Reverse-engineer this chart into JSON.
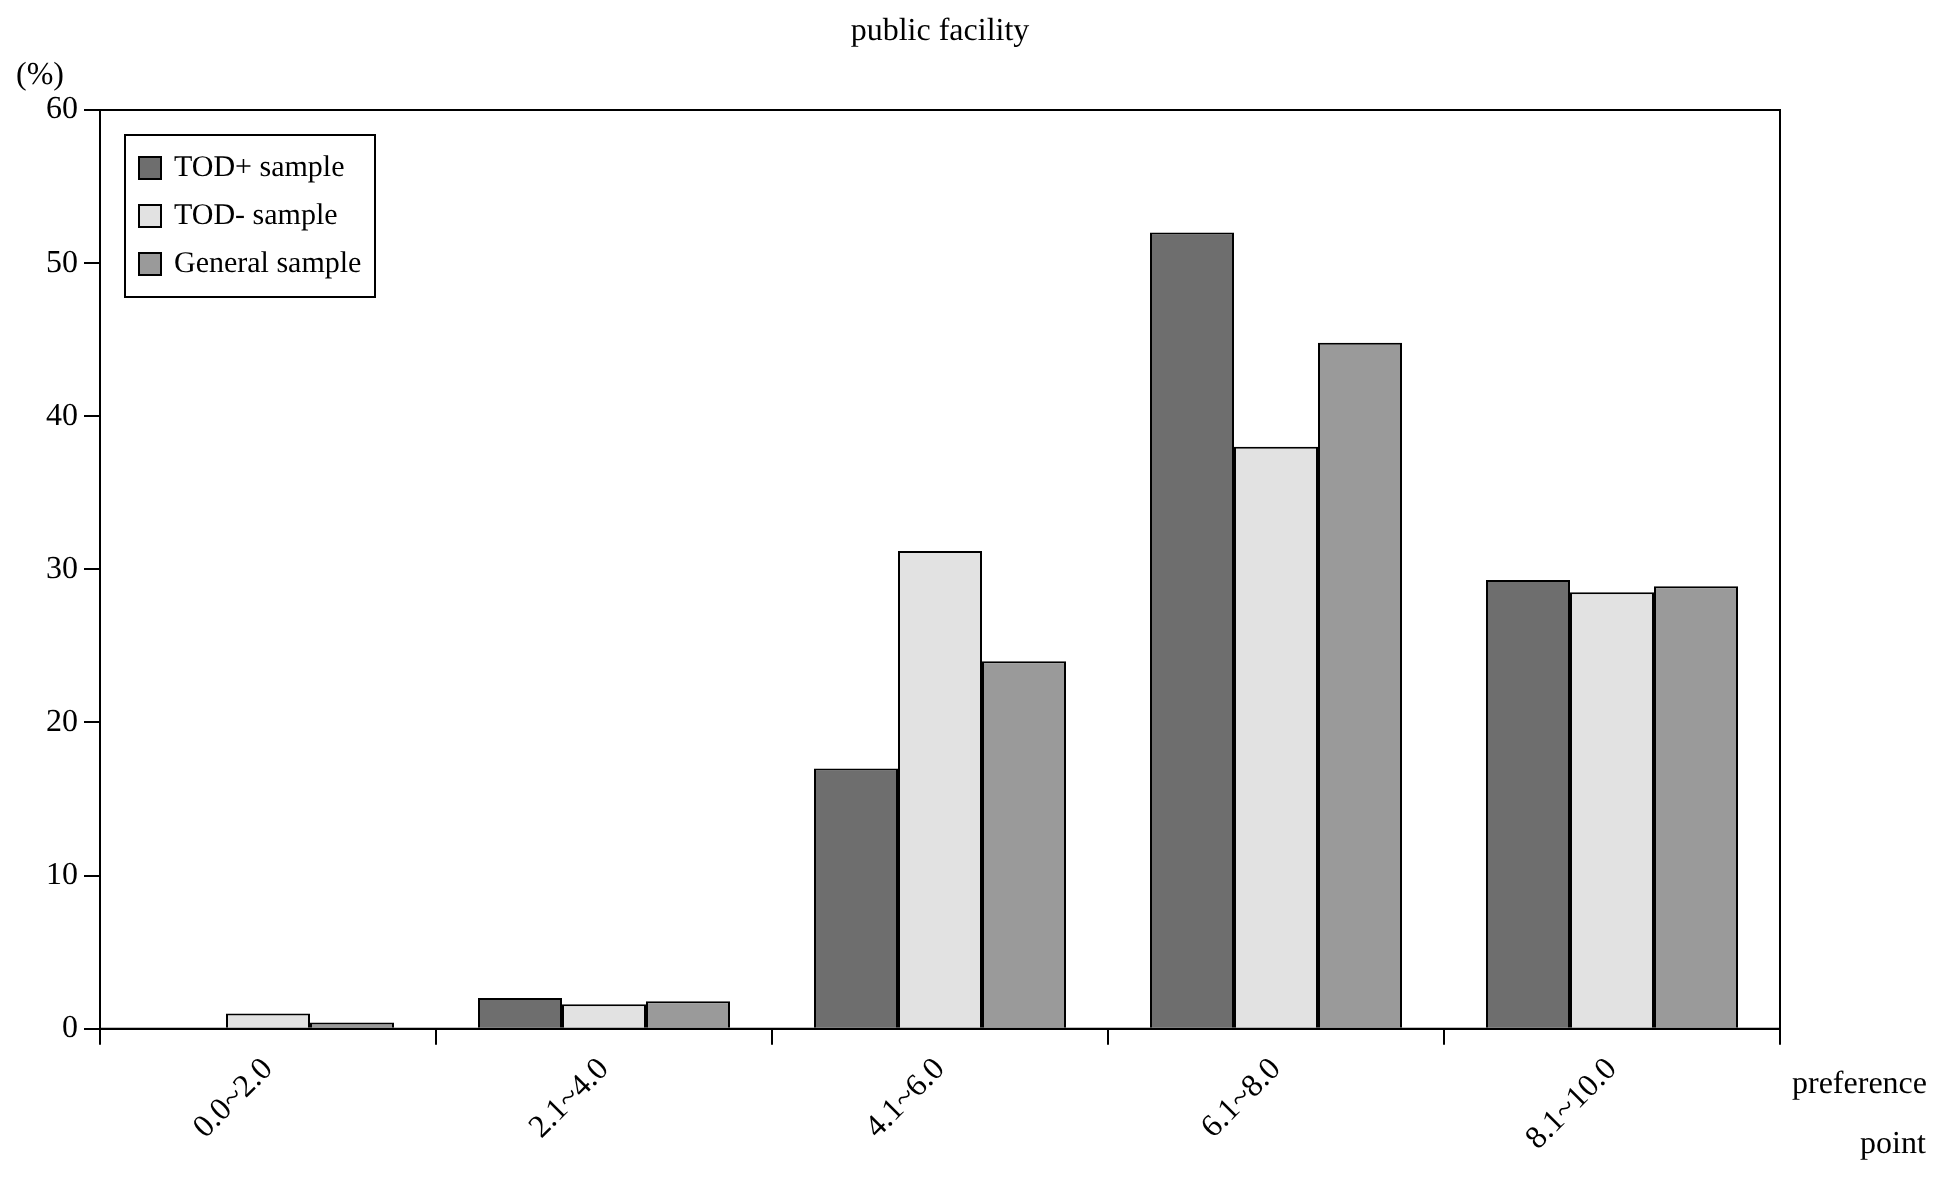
{
  "chart_data": {
    "type": "bar",
    "title": "public facility",
    "ylabel": "(%)",
    "xlabel": "preference point",
    "categories": [
      "0.0~2.0",
      "2.1~4.0",
      "4.1~6.0",
      "6.1~8.0",
      "8.1~10.0"
    ],
    "series": [
      {
        "name": "TOD+ sample",
        "color": "#6e6e6e",
        "values": [
          0,
          2.0,
          17.0,
          52.0,
          29.3
        ]
      },
      {
        "name": "TOD- sample",
        "color": "#e2e2e2",
        "values": [
          1.0,
          1.6,
          31.2,
          38.0,
          28.5
        ]
      },
      {
        "name": "General sample",
        "color": "#9a9a9a",
        "values": [
          0.4,
          1.8,
          24.0,
          44.8,
          28.9
        ]
      }
    ],
    "ylim": [
      0,
      60
    ],
    "yticks": [
      0,
      10,
      20,
      30,
      40,
      50,
      60
    ],
    "grid": false,
    "legend": "top left"
  }
}
